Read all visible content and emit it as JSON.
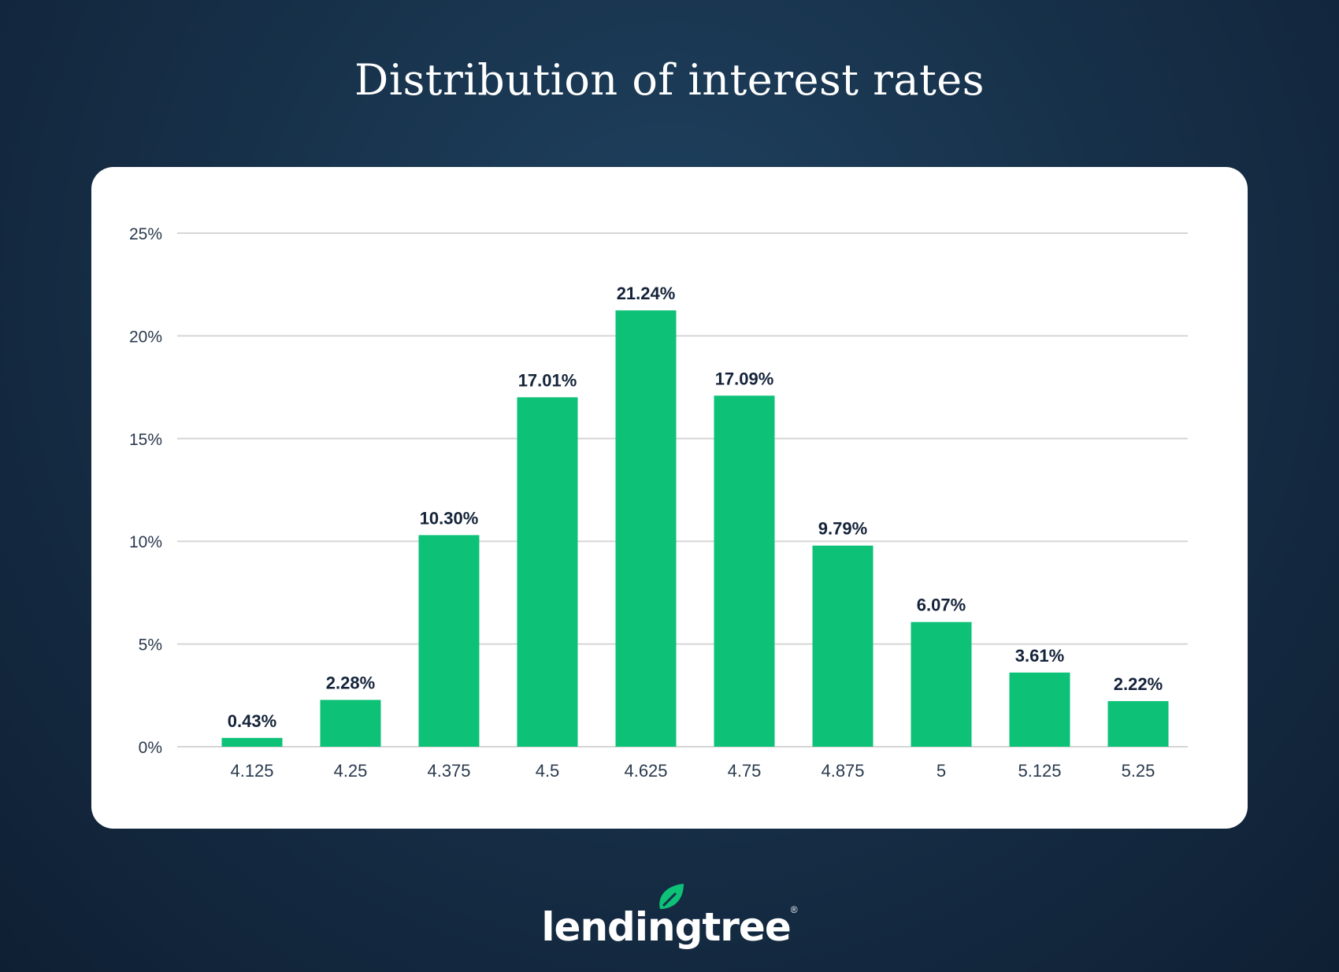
{
  "chart_data": {
    "type": "bar",
    "title": "Distribution of interest rates",
    "xlabel": "",
    "ylabel": "",
    "categories": [
      "4.125",
      "4.25",
      "4.375",
      "4.5",
      "4.625",
      "4.75",
      "4.875",
      "5",
      "5.125",
      "5.25"
    ],
    "values": [
      0.43,
      2.28,
      10.3,
      17.01,
      21.24,
      17.09,
      9.79,
      6.07,
      3.61,
      2.22
    ],
    "data_labels": [
      "0.43%",
      "2.28%",
      "10.30%",
      "17.01%",
      "21.24%",
      "17.09%",
      "9.79%",
      "6.07%",
      "3.61%",
      "2.22%"
    ],
    "ylim": [
      0,
      25
    ],
    "yticks": [
      0,
      5,
      10,
      15,
      20,
      25
    ],
    "ytick_labels": [
      "0%",
      "5%",
      "10%",
      "15%",
      "20%",
      "25%"
    ],
    "grid": true,
    "bar_color": "#0dc177"
  },
  "brand": {
    "logo_text": "lendingtree"
  }
}
